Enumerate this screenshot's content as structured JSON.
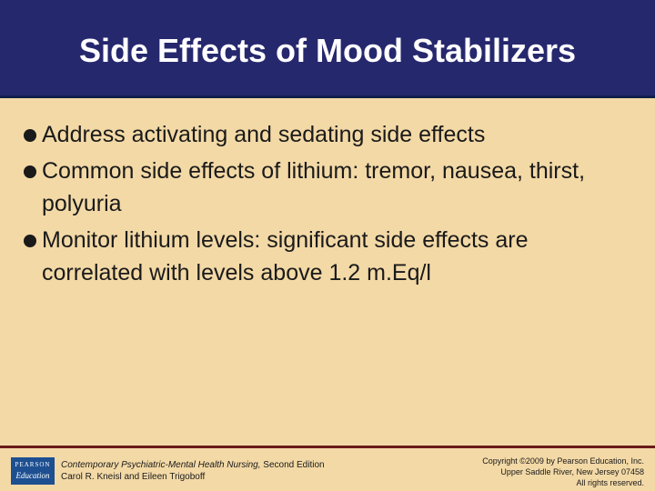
{
  "slide": {
    "title": "Side Effects of Mood Stabilizers",
    "bullets": [
      "Address activating and sedating side effects",
      "Common side effects of lithium: tremor, nausea, thirst, polyuria",
      "Monitor lithium levels: significant side effects are correlated with levels above 1.2 m.Eq/l"
    ]
  },
  "footer": {
    "logo_top": "PEARSON",
    "logo_bottom": "Education",
    "book_title": "Contemporary Psychiatric-Mental Health Nursing,",
    "edition": " Second Edition",
    "authors": "Carol R. Kneisl and Eileen Trigoboff",
    "copyright_line1": "Copyright ©2009 by Pearson Education, Inc.",
    "copyright_line2": "Upper Saddle River, New Jersey 07458",
    "copyright_line3": "All rights reserved."
  },
  "colors": {
    "title_bar": "#26286e",
    "background": "#f3d9a6",
    "footer_rule": "#6a1a1a",
    "logo": "#1d4f91"
  }
}
